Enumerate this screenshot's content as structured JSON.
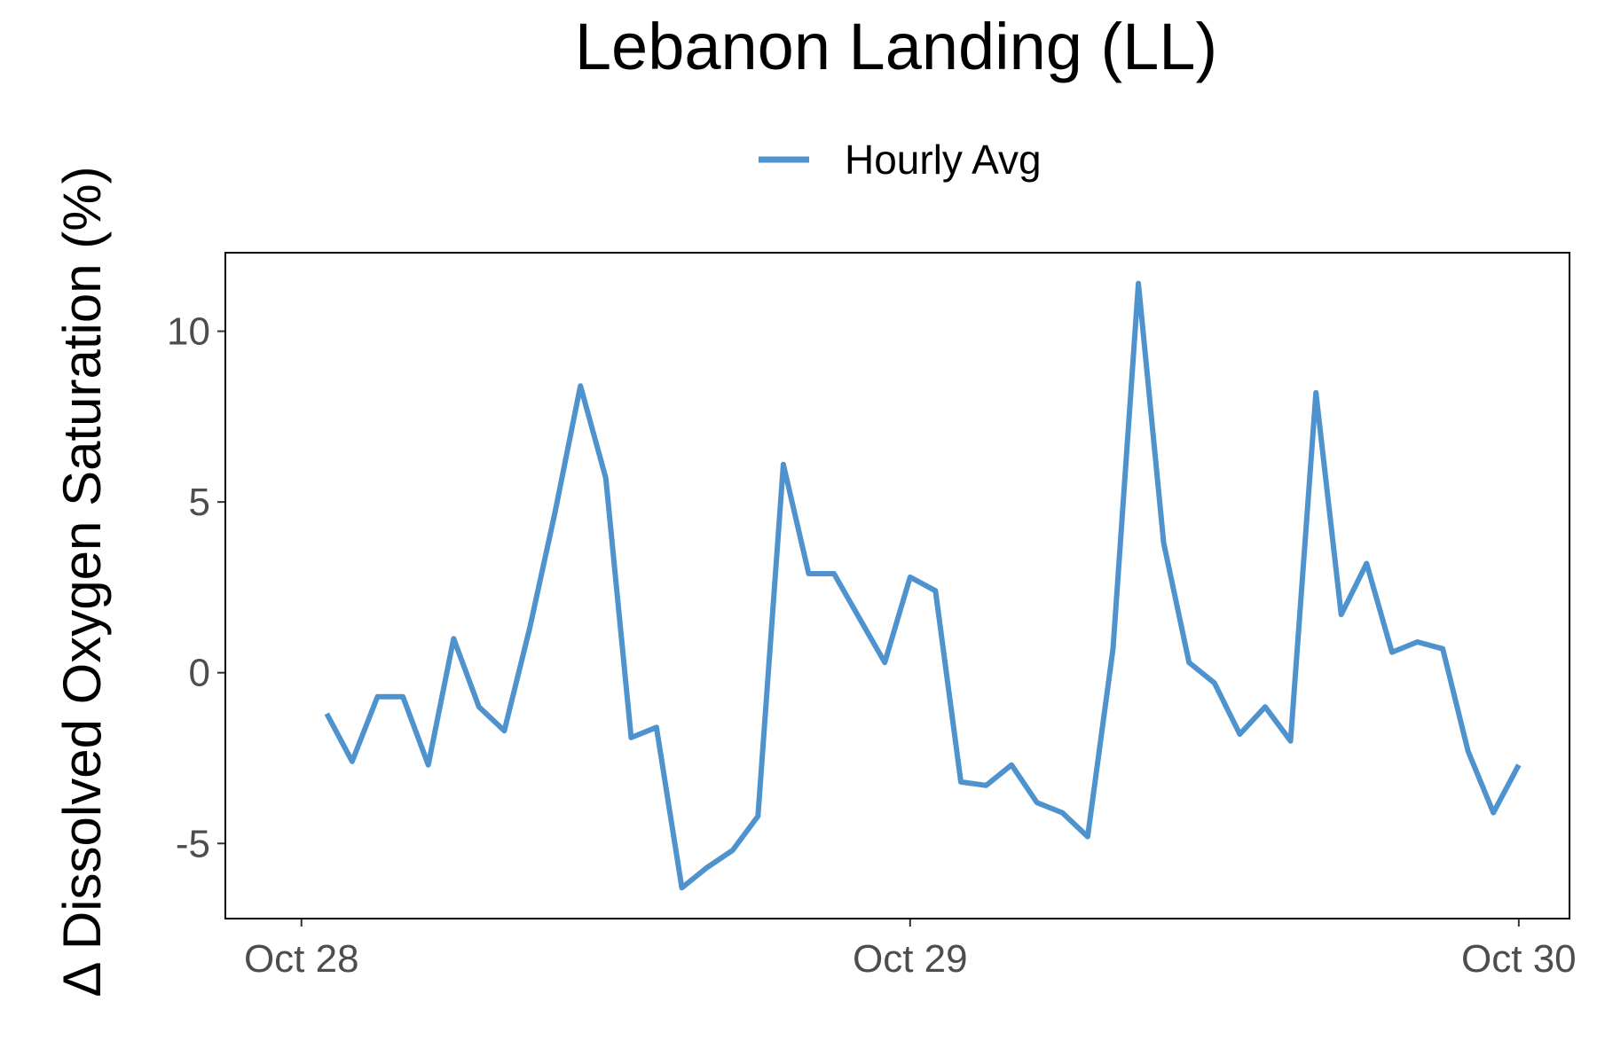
{
  "chart_data": {
    "type": "line",
    "title": "Lebanon Landing (LL)",
    "xlabel": "",
    "ylabel": "Δ Dissolved Oxygen Saturation (%)",
    "legend": {
      "position": "top"
    },
    "grid": false,
    "x_ticks": [
      {
        "label": "Oct 28",
        "value": "2023-10-28 00:00"
      },
      {
        "label": "Oct 29",
        "value": "2023-10-29 00:00"
      },
      {
        "label": "Oct 30",
        "value": "2023-10-30 00:00"
      }
    ],
    "y_ticks": [
      -5,
      0,
      5,
      10
    ],
    "xlim": [
      "2023-10-27 21:00",
      "2023-10-30 02:00"
    ],
    "ylim": [
      -7.2,
      12.3
    ],
    "series": [
      {
        "name": "Hourly Avg",
        "color": "#4e93cd",
        "x": [
          "2023-10-28 01:00",
          "2023-10-28 02:00",
          "2023-10-28 03:00",
          "2023-10-28 04:00",
          "2023-10-28 05:00",
          "2023-10-28 06:00",
          "2023-10-28 07:00",
          "2023-10-28 08:00",
          "2023-10-28 09:00",
          "2023-10-28 10:00",
          "2023-10-28 11:00",
          "2023-10-28 12:00",
          "2023-10-28 13:00",
          "2023-10-28 14:00",
          "2023-10-28 15:00",
          "2023-10-28 16:00",
          "2023-10-28 17:00",
          "2023-10-28 18:00",
          "2023-10-28 19:00",
          "2023-10-28 20:00",
          "2023-10-28 21:00",
          "2023-10-28 22:00",
          "2023-10-28 23:00",
          "2023-10-29 00:00",
          "2023-10-29 01:00",
          "2023-10-29 02:00",
          "2023-10-29 03:00",
          "2023-10-29 04:00",
          "2023-10-29 05:00",
          "2023-10-29 06:00",
          "2023-10-29 07:00",
          "2023-10-29 08:00",
          "2023-10-29 09:00",
          "2023-10-29 10:00",
          "2023-10-29 11:00",
          "2023-10-29 12:00",
          "2023-10-29 13:00",
          "2023-10-29 14:00",
          "2023-10-29 15:00",
          "2023-10-29 16:00",
          "2023-10-29 17:00",
          "2023-10-29 18:00",
          "2023-10-29 19:00",
          "2023-10-29 20:00",
          "2023-10-29 21:00",
          "2023-10-29 22:00",
          "2023-10-29 23:00",
          "2023-10-30 00:00"
        ],
        "values": [
          -1.2,
          -2.6,
          -0.7,
          -0.7,
          -2.7,
          1.0,
          -1.0,
          -1.7,
          1.3,
          4.7,
          8.4,
          5.7,
          -1.9,
          -1.6,
          -6.3,
          -5.7,
          -5.2,
          -4.2,
          6.1,
          2.9,
          2.9,
          1.6,
          0.3,
          2.8,
          2.4,
          -3.2,
          -3.3,
          -2.7,
          -3.8,
          -4.1,
          -4.8,
          0.7,
          11.4,
          3.8,
          0.3,
          -0.3,
          -1.8,
          -1.0,
          -2.0,
          8.2,
          1.7,
          3.2,
          0.6,
          0.9,
          0.7,
          -2.3,
          -4.1,
          -2.7
        ]
      }
    ]
  }
}
